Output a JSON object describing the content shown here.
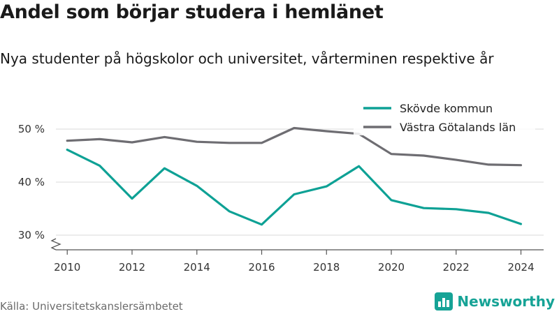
{
  "header": {
    "title": "Andel som börjar studera i hemlänet",
    "subtitle": "Nya studenter på högskolor och universitet, vårterminen respektive år"
  },
  "footer": {
    "source": "Källa: Universitetskanslersämbetet",
    "brand": "Newsworthy",
    "brand_icon": "bar-chart-logo-icon",
    "brand_color": "#16a396"
  },
  "chart_data": {
    "type": "line",
    "x": [
      2010,
      2011,
      2012,
      2013,
      2014,
      2015,
      2016,
      2017,
      2018,
      2019,
      2020,
      2021,
      2022,
      2023,
      2024
    ],
    "x_ticks": [
      "2010",
      "2012",
      "2014",
      "2016",
      "2018",
      "2020",
      "2022",
      "2024"
    ],
    "y_ticks": [
      "30 %",
      "40 %",
      "50 %"
    ],
    "ylim": [
      28,
      55
    ],
    "y_axis_break": true,
    "grid": true,
    "legend_position": "top-right",
    "series": [
      {
        "name": "Skövde kommun",
        "color": "#0ea195",
        "values": [
          46.1,
          43.1,
          36.9,
          42.6,
          39.3,
          34.5,
          32.0,
          37.7,
          39.2,
          43.0,
          36.6,
          35.1,
          34.9,
          34.2,
          32.1
        ]
      },
      {
        "name": "Västra Götalands län",
        "color": "#6e6d72",
        "values": [
          47.8,
          48.1,
          47.5,
          48.5,
          47.6,
          47.4,
          47.4,
          50.2,
          49.6,
          49.1,
          45.3,
          45.0,
          44.2,
          43.3,
          43.2
        ]
      }
    ]
  }
}
